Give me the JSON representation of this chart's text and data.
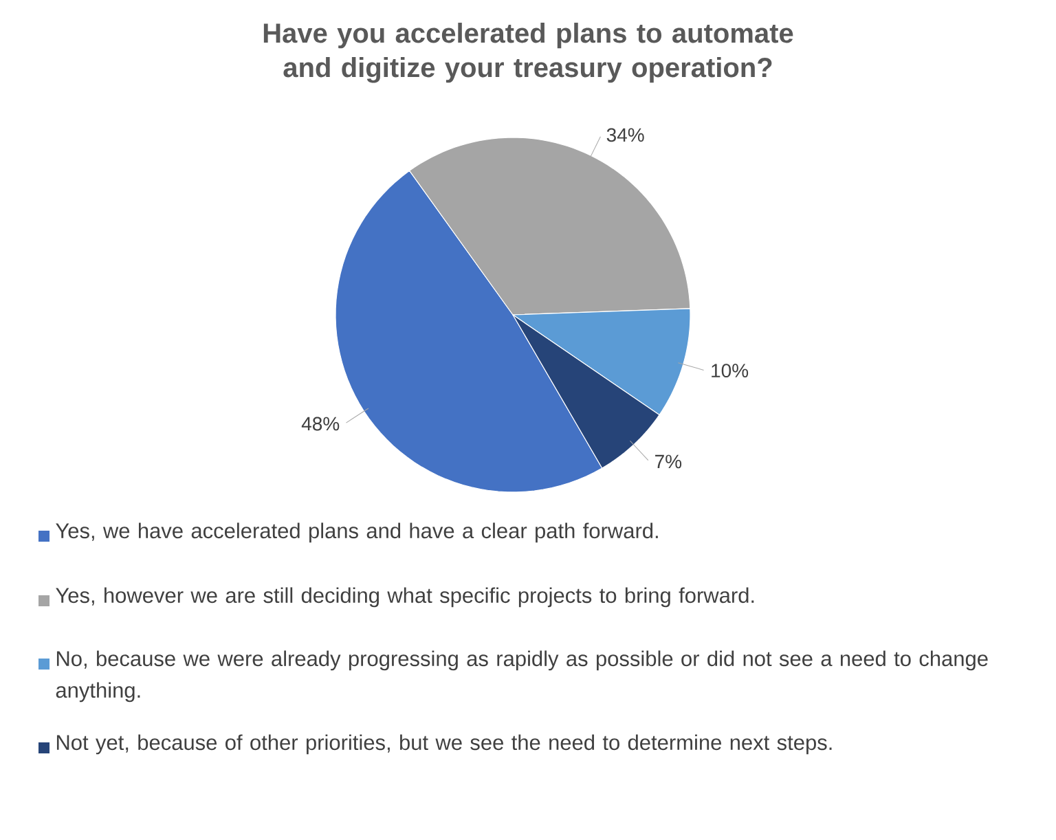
{
  "chart_data": {
    "type": "pie",
    "title": "Have you accelerated plans to automate and digitize your treasury operation?",
    "categories": [
      "Yes, we have accelerated plans and have a clear path forward.",
      "Yes, however we are still deciding what specific projects to bring forward.",
      "No, because we were already progressing as rapidly as possible or did not see a need to change anything.",
      "Not yet, because of other priorities, but we see the need to determine next steps."
    ],
    "values": [
      48,
      34,
      10,
      7
    ],
    "colors": [
      "#4472c4",
      "#a5a5a5",
      "#5b9bd5",
      "#264478"
    ],
    "value_labels": [
      "48%",
      "34%",
      "10%",
      "7%"
    ],
    "legend": "bottom"
  }
}
